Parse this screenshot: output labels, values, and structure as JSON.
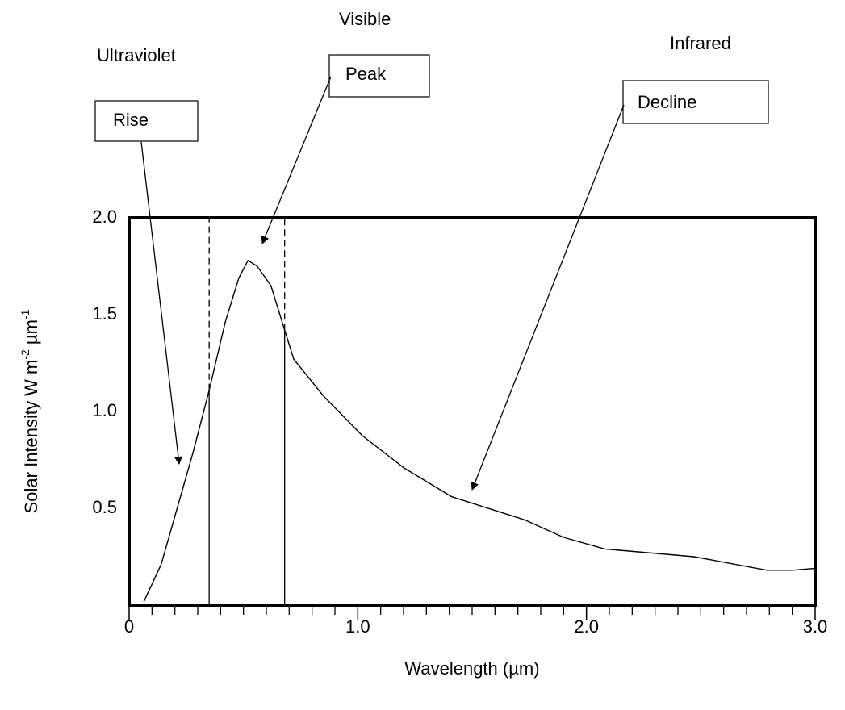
{
  "chart_data": {
    "type": "line",
    "xlabel": "Wavelength (µm)",
    "ylabel": [
      "Solar Intensity W m",
      "-2",
      " µm",
      "-1"
    ],
    "region_labels": [
      "Ultraviolet",
      "Visible",
      "Infrared"
    ],
    "annotations": [
      "Rise",
      "Peak",
      "Decline"
    ],
    "xlim": [
      0,
      3.0
    ],
    "ylim": [
      0,
      2.0
    ],
    "xticks": [
      0,
      {
        "value": 1.0,
        "label": "1.0"
      },
      {
        "value": 2.0,
        "label": "2.0"
      },
      {
        "value": 3.0,
        "label": "3.0"
      }
    ],
    "xminor_ticks": [
      0.1,
      0.2,
      0.3,
      0.4,
      0.5,
      0.6,
      0.7,
      0.8,
      0.9,
      1.1,
      1.2,
      1.3,
      1.4,
      1.5,
      1.6,
      1.7,
      1.8,
      1.9,
      2.1,
      2.2,
      2.3,
      2.4,
      2.5,
      2.6,
      2.7,
      2.8,
      2.9
    ],
    "yticks": [
      0.5,
      {
        "value": 1.0,
        "label": "1.0"
      },
      1.5,
      {
        "value": 2.0,
        "label": "2.0"
      }
    ],
    "band_edges": [
      0.35,
      0.68
    ],
    "color": "#000000",
    "x": [
      0.064,
      0.14,
      0.21,
      0.28,
      0.35,
      0.42,
      0.48,
      0.52,
      0.56,
      0.62,
      0.68,
      0.72,
      0.85,
      1.02,
      1.2,
      1.41,
      1.73,
      1.9,
      2.08,
      2.47,
      2.79,
      2.9,
      3.0
    ],
    "values": [
      0.017,
      0.21,
      0.5,
      0.79,
      1.11,
      1.46,
      1.69,
      1.78,
      1.75,
      1.65,
      1.42,
      1.27,
      1.08,
      0.875,
      0.71,
      0.56,
      0.44,
      0.35,
      0.29,
      0.25,
      0.18,
      0.18,
      0.19
    ]
  }
}
